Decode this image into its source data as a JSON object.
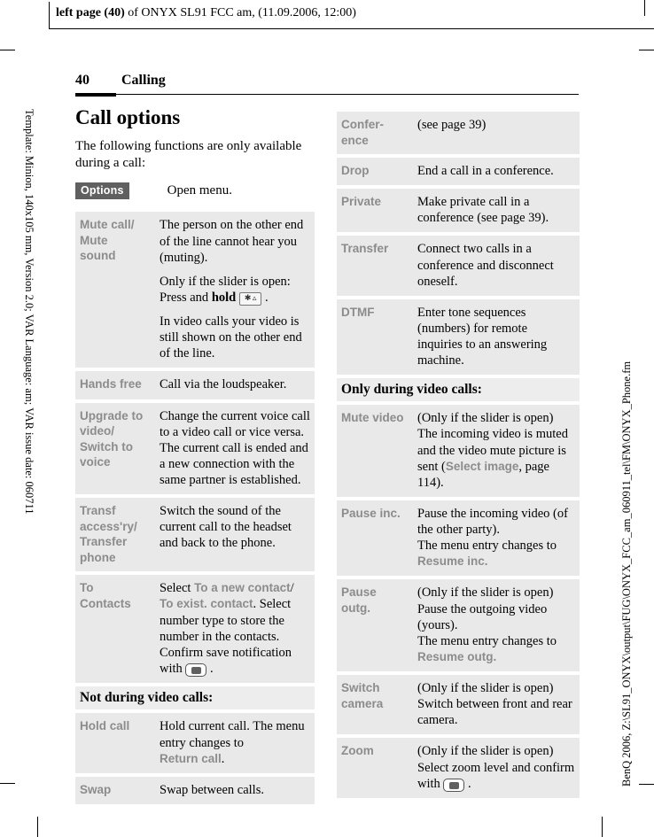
{
  "doc_header": {
    "bold": "left page (40)",
    "rest": " of ONYX SL91 FCC am, (11.09.2006, 12:00)"
  },
  "sidebars": {
    "left": "Template: Minion, 140x105 mm, Version 2.0; VAR Language: am; VAR issue date: 060711",
    "right": "BenQ 2006, Z:\\SL91_ONYX\\output\\FUG\\ONYX_FCC_am_060911_tel\\FM\\ONYX_Phone.fm"
  },
  "page_header": {
    "number": "40",
    "section": "Calling"
  },
  "content": {
    "title": "Call options",
    "intro": "The following functions are only available during a call:",
    "softkey": {
      "label": "Options",
      "action": "Open menu."
    }
  },
  "colors": {
    "row_bg": "#e9e9e9",
    "label_grey": "#8c8c8c",
    "softkey_bg": "#606060"
  },
  "icons": {
    "key-star": "star-key (press-and-hold * key)",
    "key-confirm": "navigation confirm key"
  },
  "left_table": {
    "rows": [
      {
        "label": "Mute call/\nMute\nsound",
        "paragraphs": [
          [
            {
              "t": "The person on the other end of the line cannot hear you (muting)."
            }
          ],
          [
            {
              "t": "Only if the slider is open:"
            },
            {
              "br": true
            },
            {
              "t": "Press and "
            },
            {
              "t": "hold",
              "s": "bold"
            },
            {
              "t": " "
            },
            {
              "icon": "key-star"
            },
            {
              "t": " ."
            }
          ],
          [
            {
              "t": "In video calls your video is still shown on the other end of the line."
            }
          ]
        ]
      },
      {
        "label": "Hands free",
        "paragraphs": [
          [
            {
              "t": "Call via the loudspeaker."
            }
          ]
        ]
      },
      {
        "label": "Upgrade to\nvideo/\nSwitch to\nvoice",
        "paragraphs": [
          [
            {
              "t": "Change the current voice call to a video call or vice versa. The current call is ended and a new connection with the same partner is established."
            }
          ]
        ]
      },
      {
        "label": "Transf\naccess'ry/\nTransfer\nphone",
        "paragraphs": [
          [
            {
              "t": "Switch the sound of the current call to the headset and back to the phone."
            }
          ]
        ]
      },
      {
        "label": "To\nContacts",
        "paragraphs": [
          [
            {
              "t": "Select "
            },
            {
              "t": "To a new contact",
              "s": "menu"
            },
            {
              "t": "/"
            },
            {
              "br": true
            },
            {
              "t": "To exist. contact",
              "s": "menu"
            },
            {
              "t": ". Select number type to store the number in the contacts. Confirm save notification with "
            },
            {
              "icon": "key-confirm"
            },
            {
              "t": " ."
            }
          ]
        ]
      },
      {
        "header": "Not during video calls:"
      },
      {
        "label": "Hold call",
        "paragraphs": [
          [
            {
              "t": "Hold current call. The menu entry changes to"
            },
            {
              "br": true
            },
            {
              "t": "Return call",
              "s": "menu"
            },
            {
              "t": "."
            }
          ]
        ]
      },
      {
        "label": "Swap",
        "paragraphs": [
          [
            {
              "t": "Swap between calls."
            }
          ]
        ]
      }
    ]
  },
  "right_table": {
    "rows": [
      {
        "label": "Confer-\nence",
        "paragraphs": [
          [
            {
              "t": "(see page 39)"
            }
          ]
        ]
      },
      {
        "label": "Drop",
        "paragraphs": [
          [
            {
              "t": "End a call in a conference."
            }
          ]
        ]
      },
      {
        "label": "Private",
        "paragraphs": [
          [
            {
              "t": "Make private call in a conference (see page 39)."
            }
          ]
        ]
      },
      {
        "label": "Transfer",
        "paragraphs": [
          [
            {
              "t": "Connect two calls in a conference and disconnect oneself."
            }
          ]
        ]
      },
      {
        "label": "DTMF",
        "paragraphs": [
          [
            {
              "t": "Enter tone sequences (numbers) for remote inquiries to an answering machine."
            }
          ]
        ]
      },
      {
        "header": "Only during video calls:"
      },
      {
        "label": "Mute video",
        "paragraphs": [
          [
            {
              "t": "(Only if the slider is open) The incoming video is muted and the video mute picture is sent ("
            },
            {
              "t": "Select image",
              "s": "menu"
            },
            {
              "t": ", page 114)."
            }
          ]
        ]
      },
      {
        "label": "Pause inc.",
        "paragraphs": [
          [
            {
              "t": "Pause the incoming video (of the other party)."
            },
            {
              "br": true
            },
            {
              "t": "The menu entry changes to"
            },
            {
              "br": true
            },
            {
              "t": "Resume inc.",
              "s": "menu"
            }
          ]
        ]
      },
      {
        "label": "Pause\noutg.",
        "paragraphs": [
          [
            {
              "t": "(Only if the slider is open) Pause the outgoing video (yours)."
            },
            {
              "br": true
            },
            {
              "t": "The menu entry changes to"
            },
            {
              "br": true
            },
            {
              "t": "Resume outg.",
              "s": "menu"
            }
          ]
        ]
      },
      {
        "label": "Switch\ncamera",
        "paragraphs": [
          [
            {
              "t": "(Only if the slider is open) Switch between front and rear camera."
            }
          ]
        ]
      },
      {
        "label": "Zoom",
        "paragraphs": [
          [
            {
              "t": "(Only if the slider is open) Select zoom level and confirm with "
            },
            {
              "icon": "key-confirm"
            },
            {
              "t": " ."
            }
          ]
        ]
      }
    ]
  }
}
